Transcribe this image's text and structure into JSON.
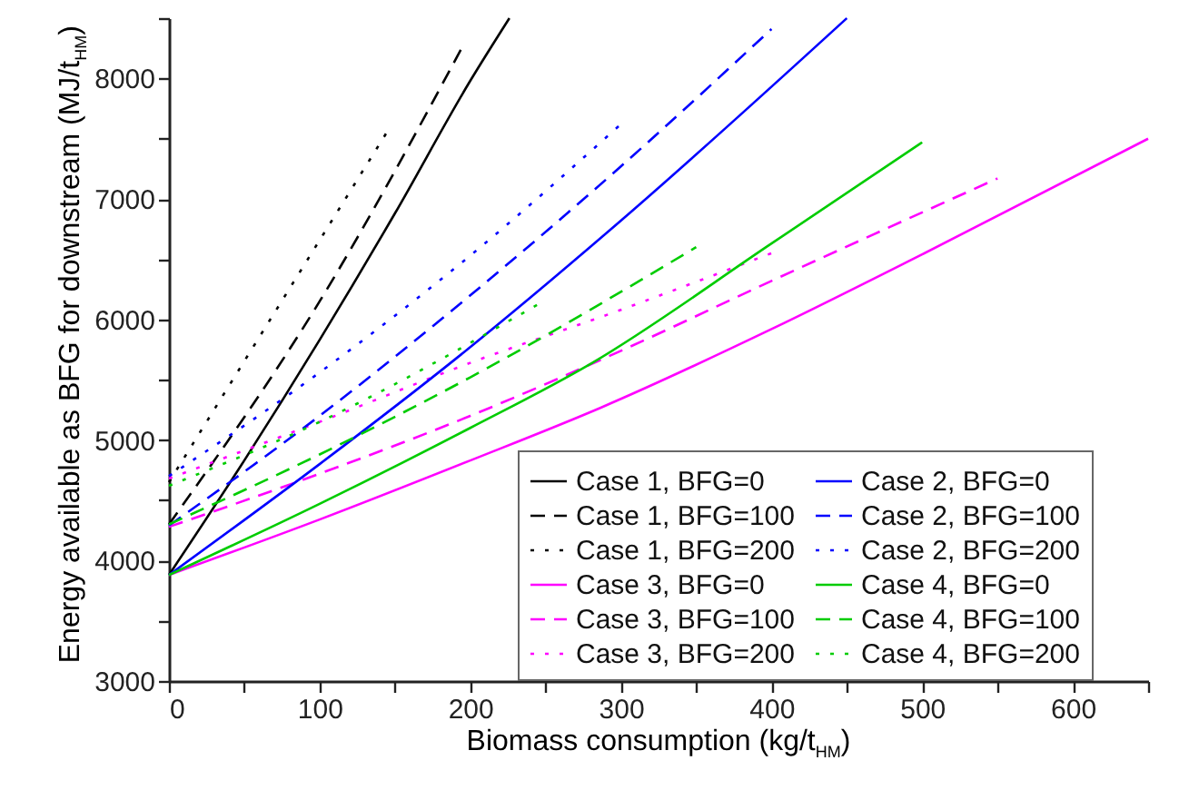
{
  "chart_data": {
    "type": "line",
    "xlabel": "Biomass consumption (kg/t$_{HM}$)",
    "ylabel": "Energy available as BFG for downstream (MJ/t$_{HM}$)",
    "xlim": [
      0,
      650
    ],
    "ylim": [
      3000,
      8500
    ],
    "xticks": [
      0,
      {
        "value": 50,
        "label": null
      },
      100,
      {
        "value": 150,
        "label": null
      },
      200,
      {
        "value": 250,
        "label": null
      },
      300,
      {
        "value": 350,
        "label": null
      },
      400,
      {
        "value": 450,
        "label": null
      },
      500,
      {
        "value": 550,
        "label": null
      },
      600,
      {
        "value": 650,
        "label": null
      }
    ],
    "yticks": [
      3000,
      {
        "value": 3500,
        "label": null
      },
      4000,
      {
        "value": 4500,
        "label": null
      },
      5000,
      {
        "value": 5500,
        "label": null
      },
      6000,
      {
        "value": 6500,
        "label": null
      },
      7000,
      {
        "value": 7500,
        "label": null
      },
      8000,
      {
        "value": 8500,
        "label": null
      }
    ],
    "grid": false,
    "legend": "bottom right",
    "marker": "none",
    "series": [
      {
        "name": "Case 1, BFG=0",
        "color": "#000000",
        "line_style": "solid",
        "x": [
          0,
          50,
          100,
          150,
          200,
          226
        ],
        "values": [
          3880,
          4830,
          5830,
          6880,
          7980,
          8500
        ]
      },
      {
        "name": "Case 1, BFG=100",
        "color": "#000000",
        "line_style": "dashed",
        "x": [
          0,
          100,
          196
        ],
        "values": [
          4300,
          6150,
          8290
        ]
      },
      {
        "name": "Case 1, BFG=200",
        "color": "#000000",
        "line_style": "dotted",
        "x": [
          0,
          145
        ],
        "values": [
          4650,
          7560
        ]
      },
      {
        "name": "Case 3, BFG=0",
        "color": "#ff00ff",
        "line_style": "solid",
        "x": [
          0,
          100,
          200,
          287,
          400,
          500,
          650
        ],
        "values": [
          3880,
          4340,
          4830,
          5270,
          5920,
          6540,
          7500
        ]
      },
      {
        "name": "Case 3, BFG=100",
        "color": "#ff00ff",
        "line_style": "dashed",
        "x": [
          0,
          100,
          200,
          300,
          400,
          550
        ],
        "values": [
          4280,
          4720,
          5200,
          5740,
          6320,
          7170
        ]
      },
      {
        "name": "Case 3, BFG=200",
        "color": "#ff00ff",
        "line_style": "dotted",
        "x": [
          0,
          100,
          200,
          300,
          400
        ],
        "values": [
          4680,
          5150,
          5640,
          6080,
          6550
        ]
      },
      {
        "name": "Case 2, BFG=0",
        "color": "#0000ff",
        "line_style": "solid",
        "x": [
          0,
          100,
          190,
          300,
          450
        ],
        "values": [
          3880,
          4800,
          5670,
          6820,
          8500
        ]
      },
      {
        "name": "Case 2, BFG=100",
        "color": "#0000ff",
        "line_style": "dashed",
        "x": [
          0,
          100,
          200,
          300,
          400
        ],
        "values": [
          4290,
          5200,
          6200,
          7270,
          8410
        ]
      },
      {
        "name": "Case 2, BFG=200",
        "color": "#0000ff",
        "line_style": "dotted",
        "x": [
          0,
          100,
          200,
          300
        ],
        "values": [
          4700,
          5560,
          6530,
          7620
        ]
      },
      {
        "name": "Case 4, BFG=0",
        "color": "#00cc00",
        "line_style": "solid",
        "x": [
          0,
          100,
          200,
          281,
          400,
          500
        ],
        "values": [
          3880,
          4470,
          5100,
          5640,
          6630,
          7470
        ]
      },
      {
        "name": "Case 4, BFG=100",
        "color": "#00cc00",
        "line_style": "dashed",
        "x": [
          0,
          100,
          200,
          350
        ],
        "values": [
          4300,
          4880,
          5520,
          6600
        ]
      },
      {
        "name": "Case 4, BFG=200",
        "color": "#00cc00",
        "line_style": "dotted",
        "x": [
          0,
          100,
          247
        ],
        "values": [
          4620,
          5150,
          6140
        ]
      }
    ]
  }
}
